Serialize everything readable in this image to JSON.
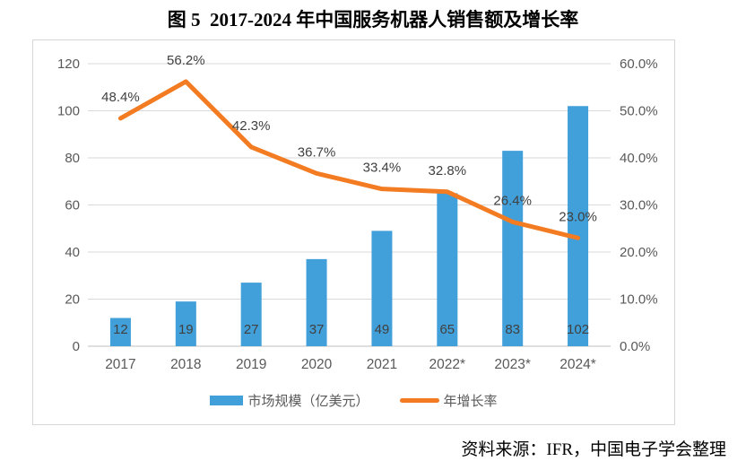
{
  "title": "图 5  2017-2024 年中国服务机器人销售额及增长率",
  "source": "资料来源：IFR，中国电子学会整理",
  "colors": {
    "grid": "#d9d9d9",
    "axis_line": "#bfbfbf",
    "tick": "#595959",
    "data_label": "#404040",
    "bar": "#419fd9",
    "line": "#f37b21"
  },
  "chart_data": {
    "type": "bar",
    "subtype": "bar+line combo, dual axis",
    "categories": [
      "2017",
      "2018",
      "2019",
      "2020",
      "2021",
      "2022*",
      "2023*",
      "2024*"
    ],
    "series": [
      {
        "name": "市场规模（亿美元）",
        "type": "bar",
        "axis": "left",
        "color": "#419fd9",
        "values": [
          12,
          19,
          27,
          37,
          49,
          65,
          83,
          102
        ],
        "value_labels": [
          "12",
          "19",
          "27",
          "37",
          "49",
          "65",
          "83",
          "102"
        ]
      },
      {
        "name": "年增长率",
        "type": "line",
        "axis": "right",
        "color": "#f37b21",
        "values": [
          48.4,
          56.2,
          42.3,
          36.7,
          33.4,
          32.8,
          26.4,
          23.0
        ],
        "value_labels": [
          "48.4%",
          "56.2%",
          "42.3%",
          "36.7%",
          "33.4%",
          "32.8%",
          "26.4%",
          "23.0%"
        ]
      }
    ],
    "left_axis": {
      "min": 0,
      "max": 120,
      "step": 20,
      "ticks": [
        "0",
        "20",
        "40",
        "60",
        "80",
        "100",
        "120"
      ]
    },
    "right_axis": {
      "min": 0,
      "max": 60,
      "step": 10,
      "ticks": [
        "0.0%",
        "10.0%",
        "20.0%",
        "30.0%",
        "40.0%",
        "50.0%",
        "60.0%"
      ]
    },
    "grid": true,
    "legend_position": "bottom"
  }
}
